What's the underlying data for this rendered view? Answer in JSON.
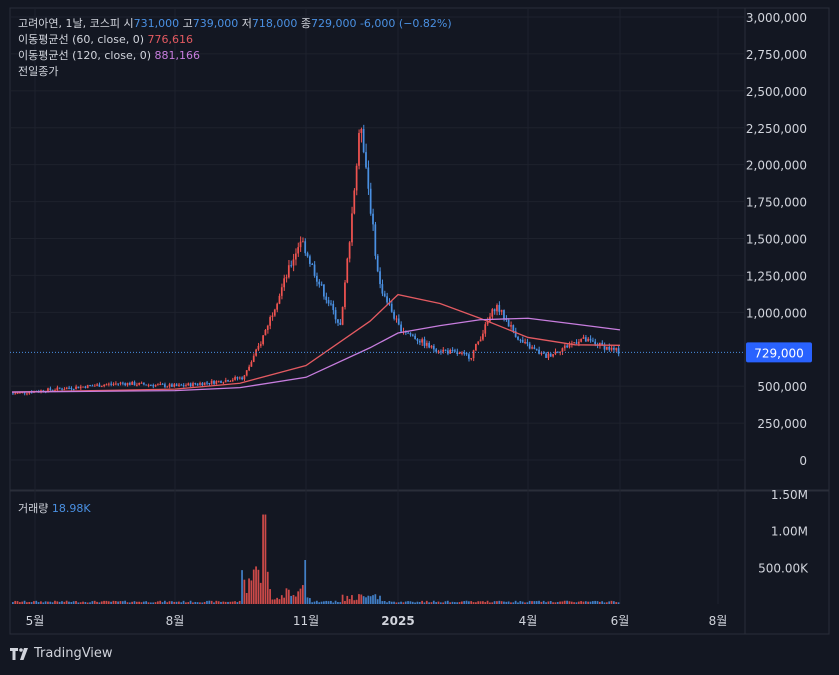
{
  "legend": {
    "symbol": "고려아연, 1날, 코스피",
    "open_label": "시",
    "open": "731,000",
    "high_label": "고",
    "high": "739,000",
    "low_label": "저",
    "low": "718,000",
    "close_label": "종",
    "close": "729,000",
    "change": "-6,000 (−0.82%)",
    "ma60_label": "이동평균선 (60, close, 0)",
    "ma60_value": "776,616",
    "ma120_label": "이동평균선 (120, close, 0)",
    "ma120_value": "881,166",
    "prev_close_label": "전일종가"
  },
  "volume_legend": {
    "label": "거래량",
    "value": "18.98K"
  },
  "last_price_badge": "729,000",
  "footer": {
    "brand": "TradingView",
    "logo_icon": "tradingview-logo-icon"
  },
  "colors": {
    "up": "#ef5350",
    "down": "#4a90e2",
    "ma60": "#e35a61",
    "ma120": "#c77dde",
    "background": "#131722"
  },
  "chart_data": [
    {
      "type": "candlestick",
      "price_axis_ticks": [
        "3,000,000",
        "2,750,000",
        "2,500,000",
        "2,250,000",
        "2,000,000",
        "1,750,000",
        "1,500,000",
        "1,250,000",
        "1,000,000",
        "500,000",
        "250,000",
        "0"
      ],
      "time_axis_ticks": [
        "5월",
        "8월",
        "11월",
        "2025",
        "4월",
        "6월",
        "8월"
      ],
      "ylim": [
        0,
        3000000
      ],
      "last_price": 729000,
      "series": [
        {
          "name": "이동평균선 (60, close, 0)",
          "points": [
            [
              "5월",
              460000
            ],
            [
              "8월",
              480000
            ],
            [
              "10월",
              520000
            ],
            [
              "11월",
              640000
            ],
            [
              "12월",
              940000
            ],
            [
              "2025",
              1120000
            ],
            [
              "2월",
              1060000
            ],
            [
              "3월",
              960000
            ],
            [
              "4월",
              830000
            ],
            [
              "5월",
              780000
            ],
            [
              "6월",
              776616
            ]
          ]
        },
        {
          "name": "이동평균선 (120, close, 0)",
          "points": [
            [
              "5월",
              460000
            ],
            [
              "8월",
              470000
            ],
            [
              "10월",
              490000
            ],
            [
              "11월",
              560000
            ],
            [
              "12월",
              760000
            ],
            [
              "2025",
              860000
            ],
            [
              "2월",
              910000
            ],
            [
              "3월",
              950000
            ],
            [
              "4월",
              960000
            ],
            [
              "5월",
              920000
            ],
            [
              "6월",
              881166
            ]
          ]
        }
      ],
      "price_path": [
        [
          "5월",
          450000
        ],
        [
          "6월",
          490000
        ],
        [
          "7월",
          520000
        ],
        [
          "8월",
          500000
        ],
        [
          "9월",
          530000
        ],
        [
          "10월",
          560000
        ],
        [
          "10월 중",
          800000
        ],
        [
          "10월 말",
          1500000
        ],
        [
          "11월",
          1200000
        ],
        [
          "11월 중",
          900000
        ],
        [
          "12월 초",
          2300000
        ],
        [
          "12월",
          1200000
        ],
        [
          "2025",
          900000
        ],
        [
          "2월",
          760000
        ],
        [
          "3월",
          700000
        ],
        [
          "3월 중",
          1050000
        ],
        [
          "4월",
          800000
        ],
        [
          "4월 말",
          700000
        ],
        [
          "5월",
          820000
        ],
        [
          "6월",
          729000
        ]
      ]
    },
    {
      "type": "bar",
      "name": "거래량",
      "volume_axis_ticks": [
        "1.50M",
        "1.00M",
        "500.00K"
      ],
      "ylim": [
        0,
        1500000
      ],
      "peaks": [
        [
          "10월",
          1220000
        ],
        [
          "11월",
          600000
        ],
        [
          "12월",
          330000
        ],
        [
          "3월",
          90000
        ],
        [
          "6월",
          18980
        ]
      ]
    }
  ]
}
